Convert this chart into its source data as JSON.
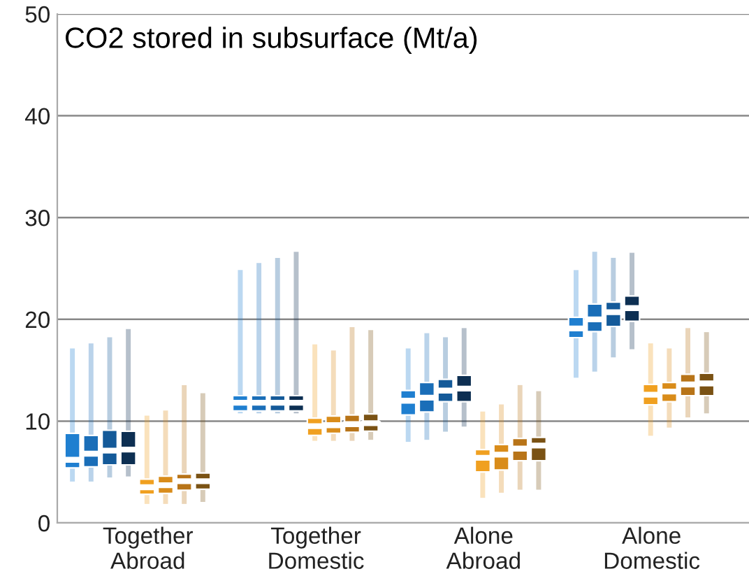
{
  "chart_data": {
    "type": "box",
    "title": "CO2 stored in subsurface (Mt/a)",
    "categories": [
      "Together\nAbroad",
      "Together\nDomestic",
      "Alone\nAbroad",
      "Alone\nDomestic"
    ],
    "ylim": [
      0,
      50
    ],
    "yticks": [
      0,
      10,
      20,
      30,
      40,
      50
    ],
    "grid": "y",
    "legend": false,
    "series": [
      {
        "color": "#1f7fd0",
        "boxes": [
          {
            "low": 4.3,
            "q1": 5.4,
            "median": 6.2,
            "q3": 8.8,
            "high": 16.9
          },
          {
            "low": 11.0,
            "q1": 11.0,
            "median": 11.8,
            "q3": 12.5,
            "high": 24.6
          },
          {
            "low": 8.2,
            "q1": 10.6,
            "median": 12.0,
            "q3": 13.0,
            "high": 16.9
          },
          {
            "low": 14.5,
            "q1": 18.2,
            "median": 19.1,
            "q3": 20.2,
            "high": 24.6
          }
        ]
      },
      {
        "color": "#1a6eb8",
        "boxes": [
          {
            "low": 4.3,
            "q1": 5.5,
            "median": 6.8,
            "q3": 8.6,
            "high": 17.4
          },
          {
            "low": 11.0,
            "q1": 11.0,
            "median": 11.8,
            "q3": 12.5,
            "high": 25.3
          },
          {
            "low": 8.4,
            "q1": 10.9,
            "median": 12.3,
            "q3": 13.8,
            "high": 18.4
          },
          {
            "low": 15.1,
            "q1": 18.8,
            "median": 20.0,
            "q3": 21.5,
            "high": 26.4
          }
        ]
      },
      {
        "color": "#145a99",
        "boxes": [
          {
            "low": 4.7,
            "q1": 5.7,
            "median": 7.1,
            "q3": 9.1,
            "high": 18.0
          },
          {
            "low": 11.0,
            "q1": 11.0,
            "median": 11.8,
            "q3": 12.5,
            "high": 25.8
          },
          {
            "low": 9.2,
            "q1": 11.9,
            "median": 13.0,
            "q3": 14.1,
            "high": 18.0
          },
          {
            "low": 16.5,
            "q1": 19.3,
            "median": 20.7,
            "q3": 21.7,
            "high": 25.8
          }
        ]
      },
      {
        "color": "#0d2f52",
        "boxes": [
          {
            "low": 4.8,
            "q1": 5.7,
            "median": 7.2,
            "q3": 9.0,
            "high": 18.8
          },
          {
            "low": 11.0,
            "q1": 11.0,
            "median": 11.8,
            "q3": 12.5,
            "high": 26.4
          },
          {
            "low": 9.7,
            "q1": 11.9,
            "median": 13.2,
            "q3": 14.5,
            "high": 18.9
          },
          {
            "low": 17.3,
            "q1": 19.8,
            "median": 21.1,
            "q3": 22.3,
            "high": 26.3
          }
        ]
      },
      {
        "color": "#f0a020",
        "boxes": [
          {
            "low": 2.1,
            "q1": 2.8,
            "median": 3.5,
            "q3": 4.3,
            "high": 10.3
          },
          {
            "low": 8.3,
            "q1": 8.6,
            "median": 9.5,
            "q3": 10.3,
            "high": 17.3
          },
          {
            "low": 2.7,
            "q1": 5.0,
            "median": 6.4,
            "q3": 7.2,
            "high": 10.7
          },
          {
            "low": 8.8,
            "q1": 11.6,
            "median": 12.6,
            "q3": 13.6,
            "high": 17.4
          }
        ]
      },
      {
        "color": "#d98c1a",
        "boxes": [
          {
            "low": 2.1,
            "q1": 2.9,
            "median": 3.7,
            "q3": 4.6,
            "high": 10.8
          },
          {
            "low": 8.3,
            "q1": 8.8,
            "median": 9.6,
            "q3": 10.5,
            "high": 16.7
          },
          {
            "low": 3.2,
            "q1": 5.2,
            "median": 6.7,
            "q3": 7.7,
            "high": 11.4
          },
          {
            "low": 9.6,
            "q1": 11.9,
            "median": 12.9,
            "q3": 13.8,
            "high": 16.9
          }
        ]
      },
      {
        "color": "#b87418",
        "boxes": [
          {
            "low": 2.1,
            "q1": 3.2,
            "median": 4.1,
            "q3": 4.8,
            "high": 13.3
          },
          {
            "low": 8.3,
            "q1": 8.9,
            "median": 9.7,
            "q3": 10.6,
            "high": 19.0
          },
          {
            "low": 3.5,
            "q1": 6.1,
            "median": 7.3,
            "q3": 8.3,
            "high": 13.3
          },
          {
            "low": 10.6,
            "q1": 12.5,
            "median": 13.6,
            "q3": 14.6,
            "high": 18.9
          }
        ]
      },
      {
        "color": "#7a5214",
        "boxes": [
          {
            "low": 2.3,
            "q1": 3.3,
            "median": 4.1,
            "q3": 4.9,
            "high": 12.5
          },
          {
            "low": 8.4,
            "q1": 9.0,
            "median": 9.8,
            "q3": 10.7,
            "high": 18.7
          },
          {
            "low": 3.5,
            "q1": 6.1,
            "median": 7.6,
            "q3": 8.4,
            "high": 12.7
          },
          {
            "low": 11.0,
            "q1": 12.5,
            "median": 13.7,
            "q3": 14.7,
            "high": 18.5
          }
        ]
      }
    ]
  }
}
